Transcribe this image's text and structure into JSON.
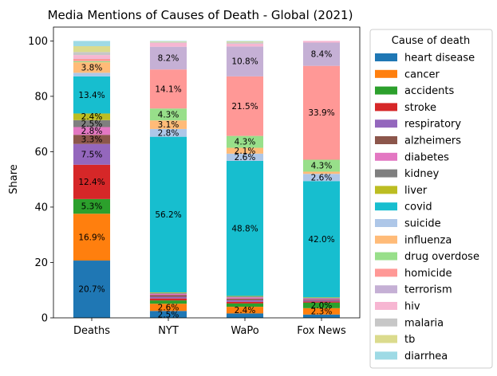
{
  "chart_data": {
    "type": "bar",
    "stacked": true,
    "title": "Media Mentions of Causes of Death - Global (2021)",
    "xlabel": "",
    "ylabel": "Share",
    "ylim": [
      0,
      105
    ],
    "yticks": [
      0,
      20,
      40,
      60,
      80,
      100
    ],
    "categories": [
      "Deaths",
      "NYT",
      "WaPo",
      "Fox News"
    ],
    "legend_title": "Cause of death",
    "legend_position": "right-outside",
    "series": [
      {
        "name": "heart disease",
        "color": "#1f77b4",
        "values": [
          20.7,
          2.5,
          1.6,
          1.2
        ],
        "labels": [
          "20.7%",
          "2.5%",
          "",
          ""
        ]
      },
      {
        "name": "cancer",
        "color": "#ff7f0e",
        "values": [
          16.9,
          2.6,
          2.4,
          2.3
        ],
        "labels": [
          "16.9%",
          "2.6%",
          "2.4%",
          "2.3%"
        ]
      },
      {
        "name": "accidents",
        "color": "#2ca02c",
        "values": [
          5.3,
          1.2,
          1.2,
          2.0
        ],
        "labels": [
          "5.3%",
          "",
          "",
          "2.0%"
        ]
      },
      {
        "name": "stroke",
        "color": "#d62728",
        "values": [
          12.4,
          0.7,
          0.6,
          0.4
        ],
        "labels": [
          "12.4%",
          "",
          "",
          ""
        ]
      },
      {
        "name": "respiratory",
        "color": "#9467bd",
        "values": [
          7.5,
          0.6,
          0.6,
          0.4
        ],
        "labels": [
          "7.5%",
          "",
          "",
          ""
        ]
      },
      {
        "name": "alzheimers",
        "color": "#8c564b",
        "values": [
          3.3,
          0.6,
          0.5,
          0.3
        ],
        "labels": [
          "3.3%",
          "",
          "",
          ""
        ]
      },
      {
        "name": "diabetes",
        "color": "#e377c2",
        "values": [
          2.8,
          0.5,
          0.5,
          0.4
        ],
        "labels": [
          "2.8%",
          "",
          "",
          ""
        ]
      },
      {
        "name": "kidney",
        "color": "#7f7f7f",
        "values": [
          2.5,
          0.3,
          0.3,
          0.2
        ],
        "labels": [
          "2.5%",
          "",
          "",
          ""
        ]
      },
      {
        "name": "liver",
        "color": "#bcbd22",
        "values": [
          2.4,
          0.2,
          0.2,
          0.2
        ],
        "labels": [
          "2.4%",
          "",
          "",
          ""
        ]
      },
      {
        "name": "covid",
        "color": "#17becf",
        "values": [
          13.4,
          56.2,
          48.8,
          42.0
        ],
        "labels": [
          "13.4%",
          "56.2%",
          "48.8%",
          "42.0%"
        ]
      },
      {
        "name": "suicide",
        "color": "#aec7e8",
        "values": [
          1.3,
          2.8,
          2.6,
          2.6
        ],
        "labels": [
          "",
          "2.8%",
          "2.6%",
          "2.6%"
        ]
      },
      {
        "name": "influenza",
        "color": "#ffbb78",
        "values": [
          3.8,
          3.1,
          2.1,
          0.8
        ],
        "labels": [
          "3.8%",
          "3.1%",
          "2.1%",
          ""
        ]
      },
      {
        "name": "drug overdose",
        "color": "#98df8a",
        "values": [
          0.4,
          4.3,
          4.3,
          4.3
        ],
        "labels": [
          "",
          "4.3%",
          "4.3%",
          "4.3%"
        ]
      },
      {
        "name": "homicide",
        "color": "#ff9896",
        "values": [
          0.8,
          14.1,
          21.5,
          33.9
        ],
        "labels": [
          "",
          "14.1%",
          "21.5%",
          "33.9%"
        ]
      },
      {
        "name": "terrorism",
        "color": "#c5b0d5",
        "values": [
          0.1,
          8.2,
          10.8,
          8.4
        ],
        "labels": [
          "",
          "8.2%",
          "10.8%",
          "8.4%"
        ]
      },
      {
        "name": "hiv",
        "color": "#f7b6d2",
        "values": [
          1.3,
          1.4,
          1.0,
          0.6
        ],
        "labels": [
          "",
          "",
          "",
          ""
        ]
      },
      {
        "name": "malaria",
        "color": "#c7c7c7",
        "values": [
          1.1,
          0.3,
          0.5,
          0.0
        ],
        "labels": [
          "",
          "",
          "",
          ""
        ]
      },
      {
        "name": "tb",
        "color": "#dbdb8d",
        "values": [
          2.1,
          0.2,
          0.3,
          0.0
        ],
        "labels": [
          "",
          "",
          "",
          ""
        ]
      },
      {
        "name": "diarrhea",
        "color": "#9edae5",
        "values": [
          1.9,
          0.2,
          0.2,
          0.0
        ],
        "labels": [
          "",
          "",
          "",
          ""
        ]
      }
    ]
  }
}
